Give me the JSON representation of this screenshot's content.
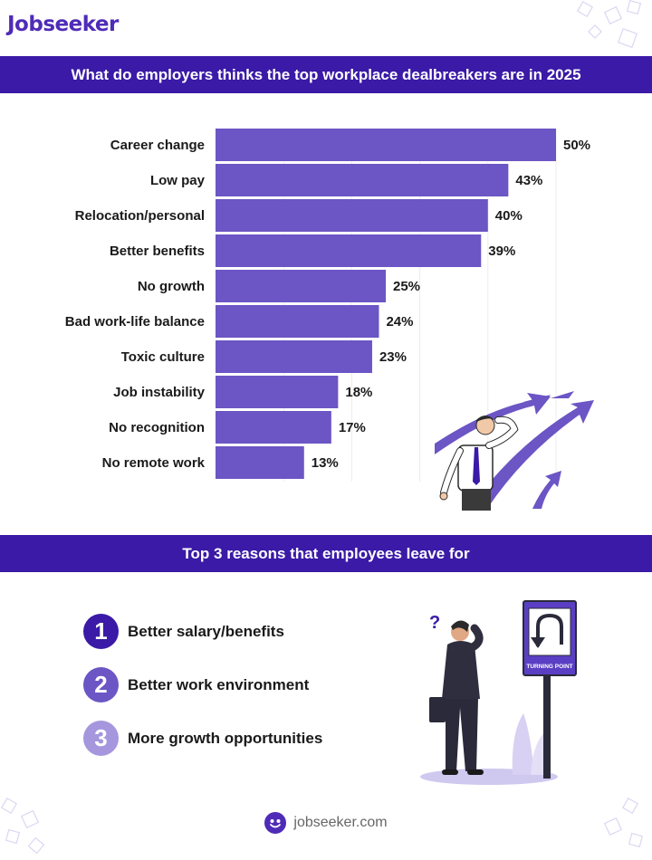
{
  "brand": {
    "logo_text": "Jobseeker",
    "footer_url": "jobseeker.com"
  },
  "colors": {
    "primary": "#3a1aa6",
    "bar": "#6c55c4",
    "num1": "#3a1aa6",
    "num2": "#6c55c4",
    "num3": "#a596dd"
  },
  "section1": {
    "title": "What do employers thinks the top workplace dealbreakers are in 2025"
  },
  "chart_data": {
    "type": "bar",
    "orientation": "horizontal",
    "categories": [
      "Career change",
      "Low pay",
      "Relocation/personal",
      "Better benefits",
      "No growth",
      "Bad work-life balance",
      "Toxic culture",
      "Job instability",
      "No recognition",
      "No remote work"
    ],
    "values": [
      50,
      43,
      40,
      39,
      25,
      24,
      23,
      18,
      17,
      13
    ],
    "value_labels": [
      "50%",
      "43%",
      "40%",
      "39%",
      "25%",
      "24%",
      "23%",
      "18%",
      "17%",
      "13%"
    ],
    "xlim": [
      0,
      50
    ],
    "unit": "%",
    "grid": true
  },
  "section2": {
    "title": "Top 3 reasons that employees leave for",
    "reasons": [
      {
        "number": "1",
        "text": "Better salary/benefits"
      },
      {
        "number": "2",
        "text": "Better work environment"
      },
      {
        "number": "3",
        "text": "More growth opportunities"
      }
    ],
    "sign_text": "TURNING POINT"
  },
  "icons": {
    "footer": "jobseeker-face-icon",
    "illustration1": "man-looking-at-arrows-illustration",
    "illustration2": "man-at-turning-point-sign-illustration"
  }
}
